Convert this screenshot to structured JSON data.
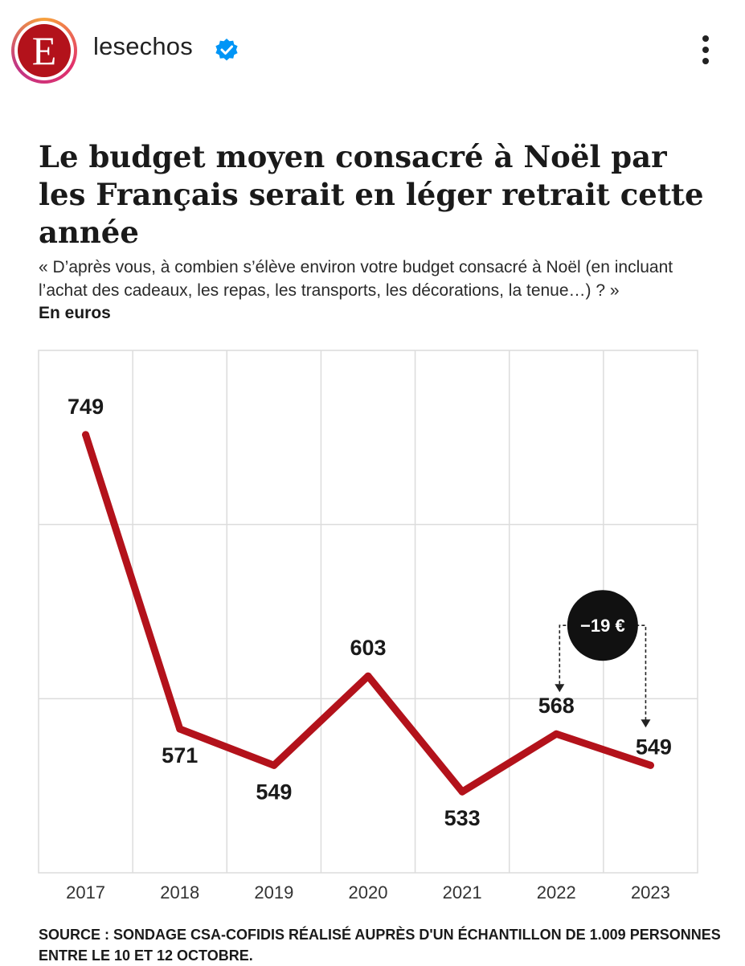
{
  "header": {
    "account_name": "lesechos",
    "avatar_letter": "E",
    "avatar_icon": "les-echos-logo",
    "verified_icon": "verified-badge-icon",
    "more_icon": "more-vertical-icon"
  },
  "colors": {
    "line": "#b3121b",
    "grid": "#dcdcdc",
    "badge_bg": "#111111",
    "badge_text": "#ffffff"
  },
  "chart_data": {
    "type": "line",
    "title": "Le budget moyen consacré à Noël par les Français serait en léger retrait cette année",
    "subtitle": "« D’après vous, à combien s’élève environ votre budget consacré à Noël (en incluant l’achat des cadeaux, les repas, les transports, les décorations, la tenue…) ? »",
    "ylabel": "En euros",
    "xlabel": "",
    "categories": [
      "2017",
      "2018",
      "2019",
      "2020",
      "2021",
      "2022",
      "2023"
    ],
    "values": [
      749,
      571,
      549,
      603,
      533,
      568,
      549
    ],
    "data_labels": [
      "749",
      "571",
      "549",
      "603",
      "533",
      "568",
      "549"
    ],
    "ylim": [
      484,
      800
    ],
    "grid": true,
    "annotation": {
      "text": "−19 €",
      "from": "2022",
      "to": "2023"
    }
  },
  "source": "SOURCE : SONDAGE CSA-COFIDIS RÉALISÉ AUPRÈS D'UN ÉCHANTILLON DE 1.009 PERSONNES ENTRE LE 10 ET 12 OCTOBRE."
}
